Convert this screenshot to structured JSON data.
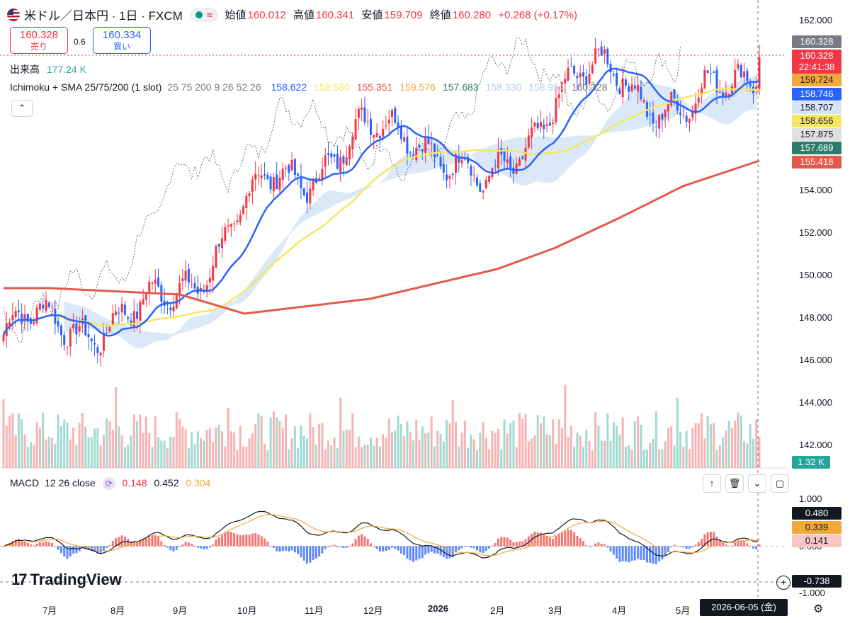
{
  "header": {
    "symbol": "米ドル／日本円 · 1日 · FXCM",
    "open_label": "始値",
    "open": "160.012",
    "high_label": "高値",
    "high": "160.341",
    "low_label": "安値",
    "low": "159.709",
    "close_label": "終値",
    "close": "160.280",
    "change": "+0.268 (+0.17%)"
  },
  "trade": {
    "sell_price": "160.328",
    "sell_label": "売り",
    "spread": "0.6",
    "buy_price": "160.334",
    "buy_label": "買い"
  },
  "volume_legend": {
    "label": "出来高",
    "value": "177.24 K"
  },
  "ichimoku_legend": {
    "name": "Ichimoku + SMA 25/75/200 (1 slot)",
    "params": "25 75 200 9 26 52 26",
    "values": [
      {
        "v": "158.622",
        "color": "#2962ff"
      },
      {
        "v": "158.580",
        "color": "#f5e663"
      },
      {
        "v": "155.351",
        "color": "#e35a4a"
      },
      {
        "v": "159.576",
        "color": "#f2a93b"
      },
      {
        "v": "157.683",
        "color": "#2e7d6b"
      },
      {
        "v": "158.330",
        "color": "#b7cde8"
      },
      {
        "v": "158.954",
        "color": "#b7cde8"
      },
      {
        "v": "160.328",
        "color": "#787b86"
      }
    ]
  },
  "macd_legend": {
    "name": "MACD",
    "params": "12 26 close",
    "hist": "0.148",
    "macd": "0.452",
    "signal": "0.304"
  },
  "price_axis": {
    "ticks": [
      "162.000",
      "160.000",
      "158.000",
      "156.000",
      "154.000",
      "152.000",
      "150.000",
      "148.000",
      "146.000",
      "144.000",
      "142.000"
    ],
    "tags": [
      {
        "label": "160.328",
        "bg": "#787b86"
      },
      {
        "label": "160.328",
        "bg": "#f23645"
      },
      {
        "label": "22:41:38",
        "bg": "#f23645"
      },
      {
        "label": "159.724",
        "bg": "#f2a93b"
      },
      {
        "label": "158.746",
        "bg": "#2962ff"
      },
      {
        "label": "158.707",
        "bg": "#d6e4f5"
      },
      {
        "label": "158.656",
        "bg": "#f5e663"
      },
      {
        "label": "157.875",
        "bg": "#e0e0e0"
      },
      {
        "label": "157.689",
        "bg": "#2e7d6b"
      },
      {
        "label": "155.418",
        "bg": "#e35a4a"
      }
    ],
    "volume_tag": "1.32 K"
  },
  "macd_axis": {
    "ticks": [
      "1.000",
      "0.000",
      "-1.000"
    ],
    "tags": [
      {
        "label": "0.480",
        "bg": "#131722"
      },
      {
        "label": "0.339",
        "bg": "#f2a93b"
      },
      {
        "label": "0.141",
        "bg": "#f8c5c5"
      }
    ],
    "crosshair_value": "-0.738"
  },
  "time_axis": {
    "ticks": [
      "7月",
      "8月",
      "9月",
      "10月",
      "11月",
      "12月",
      "2026",
      "2月",
      "3月",
      "4月",
      "5月"
    ],
    "crosshair_date": "2026-06-05 (金)"
  },
  "branding": {
    "logo": "TradingView"
  },
  "colors": {
    "up": "#f23645",
    "down": "#2962ff",
    "sma25": "#2962ff",
    "sma75": "#f5e663",
    "sma200": "#e35a4a",
    "cloud": "#bcd5f2"
  },
  "chart_data": {
    "type": "candlestick",
    "price_range": [
      141.0,
      162.0
    ],
    "macd_range": [
      -1.0,
      1.0
    ],
    "monthly_closes": [
      {
        "m": "7月",
        "price": 147.2
      },
      {
        "m": "8月",
        "price": 147.9
      },
      {
        "m": "9月",
        "price": 147.8
      },
      {
        "m": "10月",
        "price": 151.0
      },
      {
        "m": "11月",
        "price": 154.6
      },
      {
        "m": "12月",
        "price": 156.0
      },
      {
        "m": "2026",
        "price": 157.2
      },
      {
        "m": "2月",
        "price": 153.5
      },
      {
        "m": "3月",
        "price": 158.6
      },
      {
        "m": "4月",
        "price": 159.5
      },
      {
        "m": "5月",
        "price": 157.4
      },
      {
        "m": "6月",
        "price": 160.28
      }
    ],
    "sma200_path": [
      {
        "m": "7月",
        "price": 149.4
      },
      {
        "m": "9月",
        "price": 149.1
      },
      {
        "m": "10月",
        "price": 148.2
      },
      {
        "m": "12月",
        "price": 148.9
      },
      {
        "m": "2月",
        "price": 150.3
      },
      {
        "m": "3月",
        "price": 151.3
      },
      {
        "m": "4月",
        "price": 152.7
      },
      {
        "m": "5月",
        "price": 154.2
      },
      {
        "m": "6月",
        "price": 155.4
      }
    ]
  }
}
